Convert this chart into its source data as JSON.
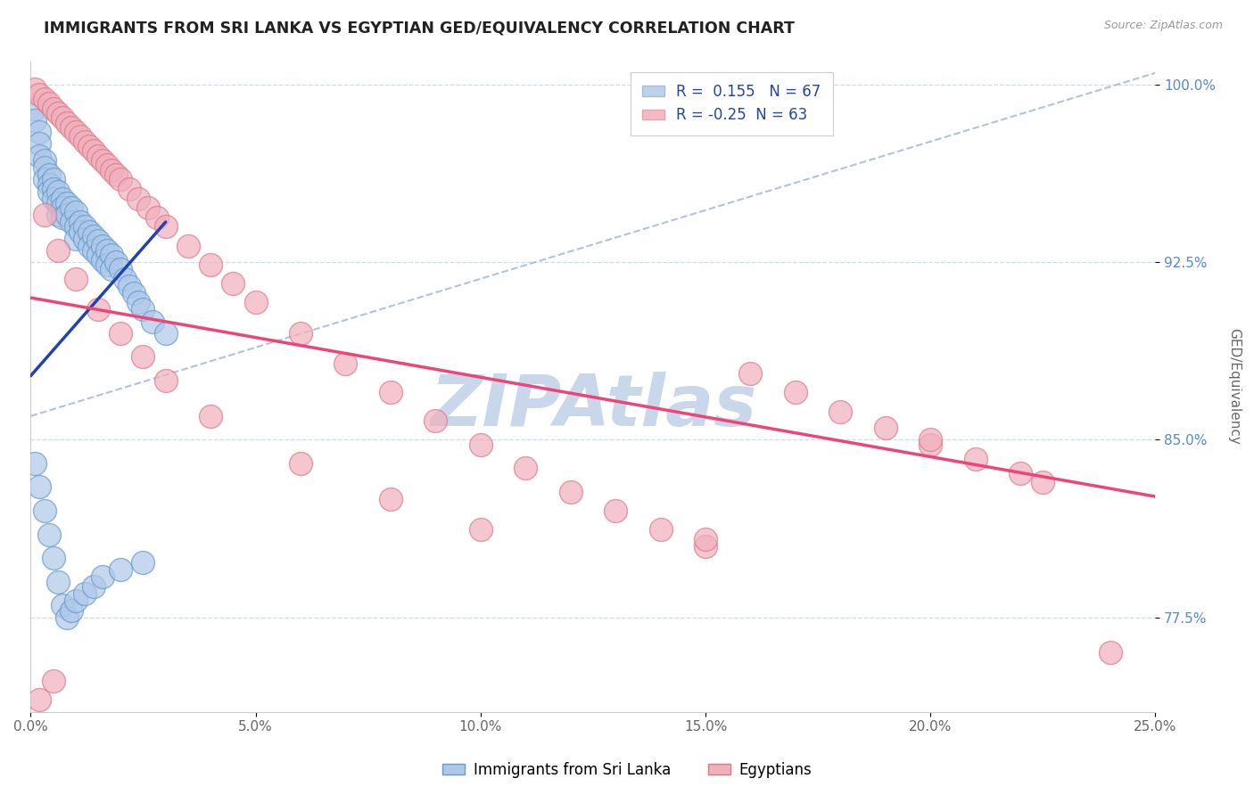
{
  "title": "IMMIGRANTS FROM SRI LANKA VS EGYPTIAN GED/EQUIVALENCY CORRELATION CHART",
  "source_text": "Source: ZipAtlas.com",
  "ylabel": "GED/Equivalency",
  "xlim": [
    0.0,
    0.25
  ],
  "ylim": [
    0.735,
    1.01
  ],
  "xticks": [
    0.0,
    0.05,
    0.1,
    0.15,
    0.2,
    0.25
  ],
  "xticklabels": [
    "0.0%",
    "5.0%",
    "10.0%",
    "15.0%",
    "20.0%",
    "25.0%"
  ],
  "yticks": [
    0.775,
    0.85,
    0.925,
    1.0
  ],
  "yticklabels": [
    "77.5%",
    "85.0%",
    "92.5%",
    "100.0%"
  ],
  "sri_lanka_R": 0.155,
  "sri_lanka_N": 67,
  "egyptian_R": -0.25,
  "egyptian_N": 63,
  "sri_lanka_color": "#adc8e8",
  "sri_lanka_edge": "#6699cc",
  "egyptian_color": "#f0b0bc",
  "egyptian_edge": "#dd7788",
  "sri_lanka_line_color": "#2244aa",
  "egyptian_line_color": "#ee4477",
  "diagonal_line_color": "#aabbdd",
  "watermark_color": "#c8d8ea",
  "legend_box_color_1": "#bdd0ee",
  "legend_box_color_2": "#f5b8c4",
  "sri_lanka_x": [
    0.001,
    0.001,
    0.002,
    0.002,
    0.002,
    0.003,
    0.003,
    0.003,
    0.004,
    0.004,
    0.004,
    0.005,
    0.005,
    0.005,
    0.006,
    0.006,
    0.006,
    0.007,
    0.007,
    0.007,
    0.008,
    0.008,
    0.009,
    0.009,
    0.01,
    0.01,
    0.01,
    0.011,
    0.011,
    0.012,
    0.012,
    0.013,
    0.013,
    0.014,
    0.014,
    0.015,
    0.015,
    0.016,
    0.016,
    0.017,
    0.017,
    0.018,
    0.018,
    0.019,
    0.02,
    0.021,
    0.022,
    0.023,
    0.024,
    0.025,
    0.027,
    0.03,
    0.001,
    0.002,
    0.003,
    0.004,
    0.005,
    0.006,
    0.007,
    0.008,
    0.009,
    0.01,
    0.012,
    0.014,
    0.016,
    0.02,
    0.025
  ],
  "sri_lanka_y": [
    0.99,
    0.985,
    0.98,
    0.975,
    0.97,
    0.968,
    0.965,
    0.96,
    0.962,
    0.958,
    0.955,
    0.96,
    0.956,
    0.952,
    0.955,
    0.95,
    0.945,
    0.952,
    0.948,
    0.944,
    0.95,
    0.945,
    0.948,
    0.942,
    0.946,
    0.94,
    0.935,
    0.942,
    0.938,
    0.94,
    0.935,
    0.938,
    0.932,
    0.936,
    0.93,
    0.934,
    0.928,
    0.932,
    0.926,
    0.93,
    0.924,
    0.928,
    0.922,
    0.925,
    0.922,
    0.918,
    0.915,
    0.912,
    0.908,
    0.905,
    0.9,
    0.895,
    0.84,
    0.83,
    0.82,
    0.81,
    0.8,
    0.79,
    0.78,
    0.775,
    0.778,
    0.782,
    0.785,
    0.788,
    0.792,
    0.795,
    0.798
  ],
  "egyptian_x": [
    0.001,
    0.002,
    0.003,
    0.004,
    0.005,
    0.006,
    0.007,
    0.008,
    0.009,
    0.01,
    0.011,
    0.012,
    0.013,
    0.014,
    0.015,
    0.016,
    0.017,
    0.018,
    0.019,
    0.02,
    0.022,
    0.024,
    0.026,
    0.028,
    0.03,
    0.035,
    0.04,
    0.045,
    0.05,
    0.06,
    0.07,
    0.08,
    0.09,
    0.1,
    0.11,
    0.12,
    0.13,
    0.14,
    0.15,
    0.16,
    0.17,
    0.18,
    0.19,
    0.2,
    0.21,
    0.22,
    0.225,
    0.003,
    0.006,
    0.01,
    0.015,
    0.02,
    0.025,
    0.03,
    0.04,
    0.06,
    0.08,
    0.1,
    0.15,
    0.2,
    0.002,
    0.005,
    0.24
  ],
  "egyptian_y": [
    0.998,
    0.996,
    0.994,
    0.992,
    0.99,
    0.988,
    0.986,
    0.984,
    0.982,
    0.98,
    0.978,
    0.976,
    0.974,
    0.972,
    0.97,
    0.968,
    0.966,
    0.964,
    0.962,
    0.96,
    0.956,
    0.952,
    0.948,
    0.944,
    0.94,
    0.932,
    0.924,
    0.916,
    0.908,
    0.895,
    0.882,
    0.87,
    0.858,
    0.848,
    0.838,
    0.828,
    0.82,
    0.812,
    0.805,
    0.878,
    0.87,
    0.862,
    0.855,
    0.848,
    0.842,
    0.836,
    0.832,
    0.945,
    0.93,
    0.918,
    0.905,
    0.895,
    0.885,
    0.875,
    0.86,
    0.84,
    0.825,
    0.812,
    0.808,
    0.85,
    0.74,
    0.748,
    0.76
  ]
}
